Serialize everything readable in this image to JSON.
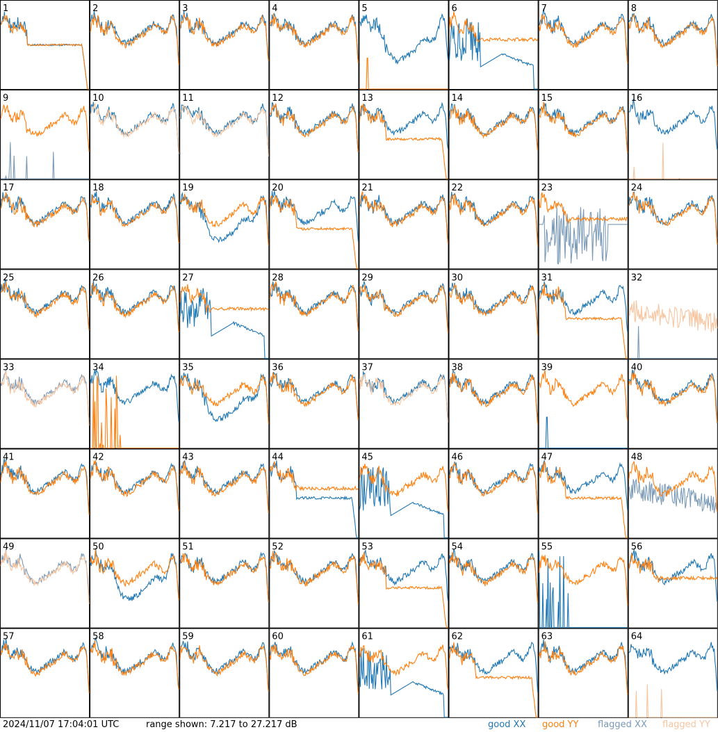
{
  "chart_data": {
    "type": "line",
    "panels": [
      "1",
      "2",
      "3",
      "4",
      "5",
      "6",
      "7",
      "8",
      "9",
      "10",
      "11",
      "12",
      "13",
      "14",
      "15",
      "16",
      "17",
      "18",
      "19",
      "20",
      "21",
      "22",
      "23",
      "24",
      "25",
      "26",
      "27",
      "28",
      "29",
      "30",
      "31",
      "32",
      "33",
      "34",
      "35",
      "36",
      "37",
      "38",
      "39",
      "40",
      "41",
      "42",
      "43",
      "44",
      "45",
      "46",
      "47",
      "48",
      "49",
      "50",
      "51",
      "52",
      "53",
      "54",
      "55",
      "56",
      "57",
      "58",
      "59",
      "60",
      "61",
      "62",
      "63",
      "64"
    ],
    "ylim": [
      7.217,
      27.217
    ],
    "series": [
      {
        "name": "good XX",
        "color": "#1f77b4"
      },
      {
        "name": "good YY",
        "color": "#ff7f0e"
      },
      {
        "name": "flagged XX",
        "color": "#7a9ab8"
      },
      {
        "name": "flagged YY",
        "color": "#f7c59f"
      }
    ],
    "panel_styles": {
      "1": {
        "xx": "dropmid",
        "yy": "dropmid"
      },
      "5": {
        "xx": "lowmid",
        "yy": "spike"
      },
      "6": {
        "xx": "noisy_dip",
        "yy": "flat_high"
      },
      "9": {
        "xx": "spike_flag",
        "yy": "normal"
      },
      "10": {
        "xx": "normal",
        "yy": "flagged_normal"
      },
      "11": {
        "xx": "normal",
        "yy": "flagged_normal"
      },
      "13": {
        "xx": "normal",
        "yy": "dropend"
      },
      "16": {
        "xx": "normal",
        "yy": "spike_flag"
      },
      "19": {
        "xx": "lowmid",
        "yy": "normal"
      },
      "20": {
        "xx": "normal",
        "yy": "dropend"
      },
      "23": {
        "xx": "noise_flag",
        "yy": "flat_high"
      },
      "27": {
        "xx": "noisy_dip",
        "yy": "flat_high"
      },
      "31": {
        "xx": "normal",
        "yy": "dropend"
      },
      "32": {
        "xx": "spike_flag",
        "yy": "flagged_noisy"
      },
      "33": {
        "xx": "flagged_normal",
        "yy": "flagged_normal"
      },
      "34": {
        "xx": "normal",
        "yy": "spikes"
      },
      "35": {
        "xx": "lowmid",
        "yy": "normal"
      },
      "37": {
        "xx": "normal",
        "yy": "flagged_normal"
      },
      "39": {
        "xx": "spike",
        "yy": "normal"
      },
      "44": {
        "xx": "dropend",
        "yy": "flat_high"
      },
      "45": {
        "xx": "noisy_dip",
        "yy": "normal"
      },
      "47": {
        "xx": "normal",
        "yy": "dropend"
      },
      "48": {
        "xx": "flagged_noisy",
        "yy": "normal"
      },
      "49": {
        "xx": "flagged_normal",
        "yy": "flagged_normal"
      },
      "50": {
        "xx": "lowmid",
        "yy": "normal"
      },
      "53": {
        "xx": "normal",
        "yy": "dropend"
      },
      "55": {
        "xx": "spikes",
        "yy": "normal"
      },
      "56": {
        "xx": "normal",
        "yy": "flat_high"
      },
      "61": {
        "xx": "noisy_dip",
        "yy": "normal"
      },
      "62": {
        "xx": "normal",
        "yy": "dropend"
      },
      "64": {
        "xx": "normal",
        "yy": "spike_flag"
      }
    }
  },
  "footer": {
    "timestamp": "2024/11/07 17:04:01 UTC",
    "range": "range shown: 7.217 to 27.217 dB",
    "legend": [
      {
        "label": "good XX",
        "color": "#1f77b4"
      },
      {
        "label": "good YY",
        "color": "#ff7f0e"
      },
      {
        "label": "flagged XX",
        "color": "#7a9ab8"
      },
      {
        "label": "flagged YY",
        "color": "#f7c59f"
      }
    ]
  }
}
